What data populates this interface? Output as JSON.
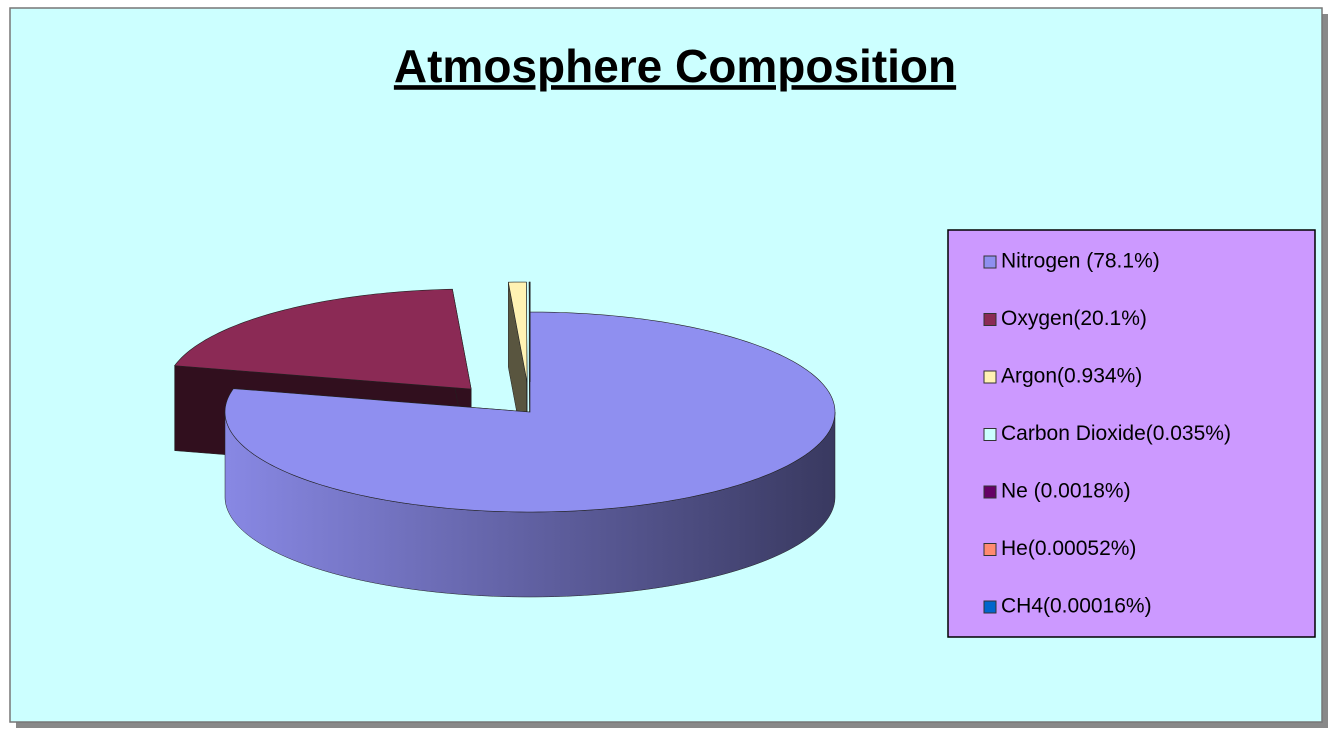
{
  "chart_data": {
    "type": "pie3d",
    "title": "Atmosphere Composition",
    "categories": [
      "Nitrogen (78.1%)",
      "Oxygen(20.1%)",
      "Argon(0.934%)",
      "Carbon Dioxide(0.035%)",
      "Ne (0.0018%)",
      "He(0.00052%)",
      "CH4(0.00016%)"
    ],
    "values": [
      78.1,
      20.1,
      0.934,
      0.035,
      0.0018,
      0.00052,
      0.00016
    ],
    "colors": [
      "#8f8ff0",
      "#8b2a55",
      "#fff2b3",
      "#ccffff",
      "#660066",
      "#ff8a70",
      "#0066cc"
    ],
    "legend": "right",
    "background": "#ccffff"
  }
}
